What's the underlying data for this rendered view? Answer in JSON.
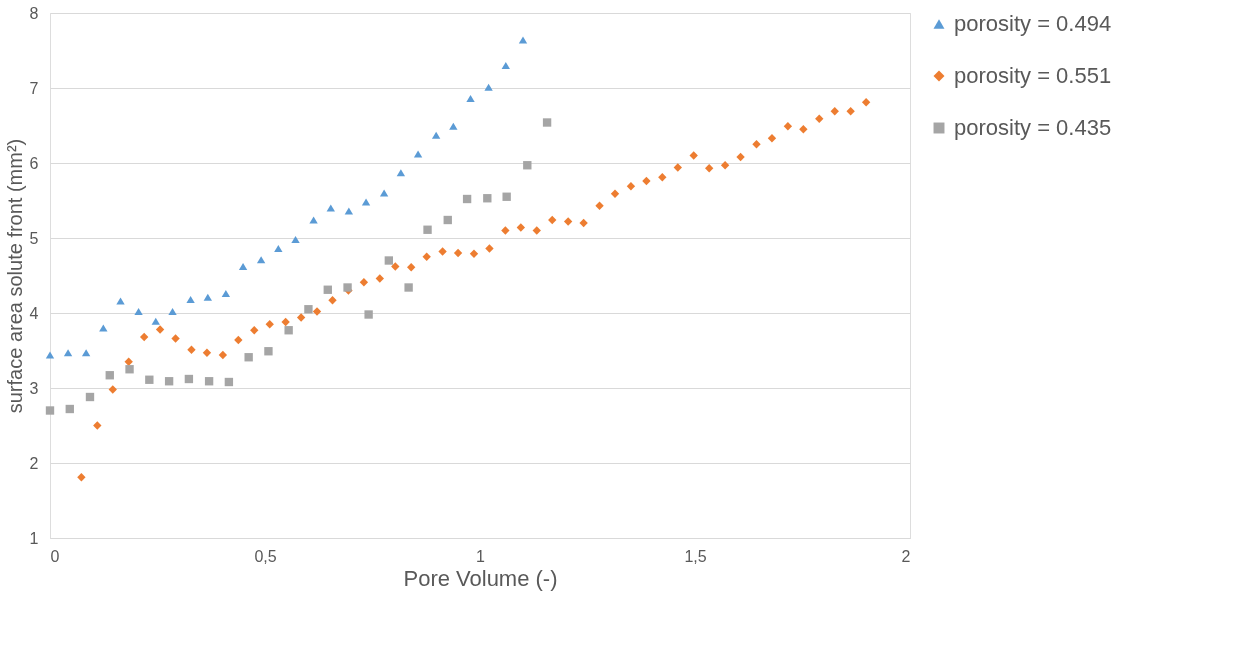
{
  "chart_data": {
    "type": "scatter",
    "xlabel": "Pore Volume (-)",
    "ylabel": "surface area solute front (mm²)",
    "xlim": [
      0,
      2
    ],
    "xticks": [
      0,
      {
        "value": 0.5,
        "label": "0,5"
      },
      1,
      {
        "value": 1.5,
        "label": "1,5"
      },
      2
    ],
    "ylim": [
      1,
      8
    ],
    "yticks": [
      1,
      2,
      3,
      4,
      5,
      6,
      7,
      8
    ],
    "grid": "y",
    "legend": "right",
    "series": [
      {
        "name": "porosity = 0.494",
        "color": "#5b9bd5",
        "marker": "triangle",
        "x": [
          0,
          0.042,
          0.084,
          0.124,
          0.164,
          0.206,
          0.246,
          0.285,
          0.327,
          0.367,
          0.409,
          0.449,
          0.491,
          0.531,
          0.571,
          0.613,
          0.653,
          0.695,
          0.735,
          0.777,
          0.816,
          0.856,
          0.898,
          0.938,
          0.978,
          1.02,
          1.06,
          1.1
        ],
        "values": [
          3.44,
          3.47,
          3.47,
          3.8,
          4.16,
          4.02,
          3.89,
          4.02,
          4.18,
          4.21,
          4.26,
          4.62,
          4.71,
          4.86,
          4.98,
          5.24,
          5.4,
          5.36,
          5.48,
          5.6,
          5.87,
          6.12,
          6.37,
          6.49,
          6.86,
          7.01,
          7.3,
          7.64
        ]
      },
      {
        "name": "porosity = 0.551",
        "color": "#ed7d31",
        "marker": "diamond",
        "x": [
          0.073,
          0.11,
          0.146,
          0.183,
          0.219,
          0.256,
          0.292,
          0.329,
          0.365,
          0.402,
          0.438,
          0.475,
          0.511,
          0.548,
          0.584,
          0.621,
          0.657,
          0.694,
          0.73,
          0.767,
          0.803,
          0.84,
          0.876,
          0.913,
          0.949,
          0.986,
          1.022,
          1.059,
          1.095,
          1.132,
          1.168,
          1.205,
          1.241,
          1.278,
          1.314,
          1.351,
          1.387,
          1.424,
          1.46,
          1.497,
          1.533,
          1.57,
          1.606,
          1.643,
          1.679,
          1.716,
          1.752,
          1.789,
          1.825,
          1.862,
          1.898
        ],
        "values": [
          1.81,
          2.5,
          2.98,
          3.35,
          3.68,
          3.78,
          3.66,
          3.51,
          3.47,
          3.44,
          3.64,
          3.77,
          3.85,
          3.88,
          3.94,
          4.02,
          4.17,
          4.3,
          4.41,
          4.46,
          4.62,
          4.61,
          4.75,
          4.82,
          4.8,
          4.79,
          4.86,
          5.1,
          5.14,
          5.1,
          5.24,
          5.22,
          5.2,
          5.43,
          5.59,
          5.69,
          5.76,
          5.81,
          5.94,
          6.1,
          5.93,
          5.97,
          6.08,
          6.25,
          6.33,
          6.49,
          6.45,
          6.59,
          6.69,
          6.69,
          6.81
        ]
      },
      {
        "name": "porosity = 0.435",
        "color": "#a5a5a5",
        "marker": "square",
        "x": [
          0,
          0.046,
          0.093,
          0.139,
          0.185,
          0.231,
          0.277,
          0.323,
          0.37,
          0.416,
          0.462,
          0.508,
          0.555,
          0.601,
          0.646,
          0.692,
          0.741,
          0.788,
          0.834,
          0.878,
          0.925,
          0.97,
          1.017,
          1.062,
          1.11,
          1.156
        ],
        "values": [
          2.7,
          2.72,
          2.88,
          3.17,
          3.25,
          3.11,
          3.09,
          3.12,
          3.09,
          3.08,
          3.41,
          3.49,
          3.77,
          4.05,
          4.31,
          4.34,
          3.98,
          4.7,
          4.34,
          5.11,
          5.24,
          5.52,
          5.53,
          5.55,
          5.97,
          6.54
        ]
      }
    ]
  }
}
